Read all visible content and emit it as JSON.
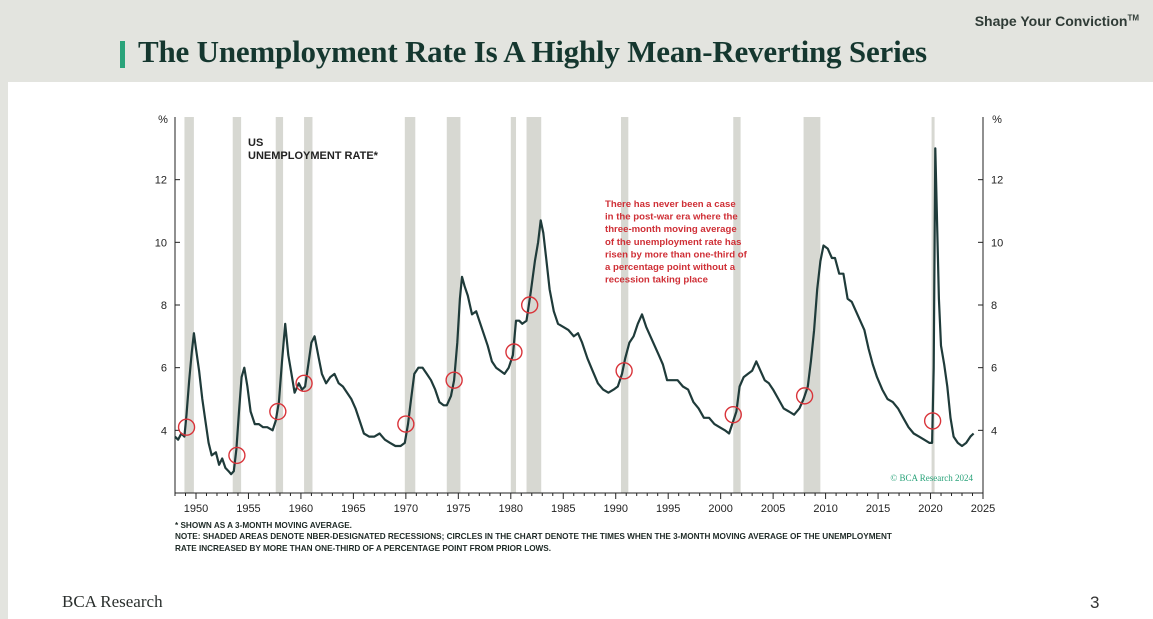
{
  "header": {
    "tagline": "Shape Your Conviction",
    "tagline_mark": "TM",
    "title": "The Unemployment Rate Is A Highly Mean-Reverting Series",
    "accent_color": "#2aa37a"
  },
  "chart_data": {
    "type": "line",
    "title": "US UNEMPLOYMENT RATE*",
    "title_lines": [
      "US",
      "UNEMPLOYMENT RATE*"
    ],
    "ylabel": "%",
    "y_ticks": [
      4,
      6,
      8,
      10,
      12
    ],
    "ylim": [
      2.0,
      14.0
    ],
    "xlim": [
      1948.0,
      2025.0
    ],
    "x_ticks": [
      1950,
      1955,
      1960,
      1965,
      1970,
      1975,
      1980,
      1985,
      1990,
      1995,
      2000,
      2005,
      2010,
      2015,
      2020,
      2025
    ],
    "grid": false,
    "line_color": "#1f3b3a",
    "recession_color": "#d7d8d2",
    "circle_color": "#d9343a",
    "series": [
      {
        "values": [
          [
            1948.0,
            3.8
          ],
          [
            1948.3,
            3.7
          ],
          [
            1948.6,
            3.9
          ],
          [
            1948.9,
            3.8
          ],
          [
            1949.1,
            4.5
          ],
          [
            1949.35,
            5.6
          ],
          [
            1949.6,
            6.5
          ],
          [
            1949.8,
            7.1
          ],
          [
            1950.0,
            6.6
          ],
          [
            1950.3,
            5.9
          ],
          [
            1950.6,
            5.0
          ],
          [
            1950.9,
            4.3
          ],
          [
            1951.2,
            3.6
          ],
          [
            1951.5,
            3.2
          ],
          [
            1951.9,
            3.3
          ],
          [
            1952.2,
            2.9
          ],
          [
            1952.5,
            3.1
          ],
          [
            1952.8,
            2.8
          ],
          [
            1953.1,
            2.7
          ],
          [
            1953.35,
            2.6
          ],
          [
            1953.6,
            2.7
          ],
          [
            1953.85,
            3.4
          ],
          [
            1954.1,
            4.6
          ],
          [
            1954.35,
            5.7
          ],
          [
            1954.6,
            6.0
          ],
          [
            1954.9,
            5.4
          ],
          [
            1955.2,
            4.6
          ],
          [
            1955.6,
            4.2
          ],
          [
            1956.0,
            4.2
          ],
          [
            1956.4,
            4.1
          ],
          [
            1956.8,
            4.1
          ],
          [
            1957.3,
            4.0
          ],
          [
            1957.6,
            4.3
          ],
          [
            1957.9,
            4.9
          ],
          [
            1958.2,
            6.2
          ],
          [
            1958.5,
            7.4
          ],
          [
            1958.8,
            6.4
          ],
          [
            1959.1,
            5.8
          ],
          [
            1959.4,
            5.2
          ],
          [
            1959.8,
            5.5
          ],
          [
            1960.1,
            5.3
          ],
          [
            1960.4,
            5.4
          ],
          [
            1960.7,
            6.1
          ],
          [
            1961.0,
            6.8
          ],
          [
            1961.3,
            7.0
          ],
          [
            1961.7,
            6.3
          ],
          [
            1962.0,
            5.8
          ],
          [
            1962.4,
            5.5
          ],
          [
            1962.8,
            5.7
          ],
          [
            1963.2,
            5.8
          ],
          [
            1963.6,
            5.5
          ],
          [
            1964.0,
            5.4
          ],
          [
            1964.4,
            5.2
          ],
          [
            1964.8,
            5.0
          ],
          [
            1965.2,
            4.7
          ],
          [
            1965.6,
            4.3
          ],
          [
            1966.0,
            3.9
          ],
          [
            1966.5,
            3.8
          ],
          [
            1967.0,
            3.8
          ],
          [
            1967.5,
            3.9
          ],
          [
            1968.0,
            3.7
          ],
          [
            1968.5,
            3.6
          ],
          [
            1969.0,
            3.5
          ],
          [
            1969.5,
            3.5
          ],
          [
            1969.9,
            3.6
          ],
          [
            1970.2,
            4.2
          ],
          [
            1970.5,
            5.0
          ],
          [
            1970.8,
            5.8
          ],
          [
            1971.2,
            6.0
          ],
          [
            1971.6,
            6.0
          ],
          [
            1972.0,
            5.8
          ],
          [
            1972.4,
            5.6
          ],
          [
            1972.8,
            5.3
          ],
          [
            1973.2,
            4.9
          ],
          [
            1973.6,
            4.8
          ],
          [
            1973.9,
            4.8
          ],
          [
            1974.3,
            5.1
          ],
          [
            1974.6,
            5.6
          ],
          [
            1974.9,
            6.8
          ],
          [
            1975.15,
            8.2
          ],
          [
            1975.35,
            8.9
          ],
          [
            1975.6,
            8.6
          ],
          [
            1975.9,
            8.3
          ],
          [
            1976.3,
            7.7
          ],
          [
            1976.7,
            7.8
          ],
          [
            1977.0,
            7.5
          ],
          [
            1977.4,
            7.1
          ],
          [
            1977.8,
            6.7
          ],
          [
            1978.2,
            6.2
          ],
          [
            1978.6,
            6.0
          ],
          [
            1979.0,
            5.9
          ],
          [
            1979.4,
            5.8
          ],
          [
            1979.8,
            6.0
          ],
          [
            1980.2,
            6.4
          ],
          [
            1980.5,
            7.5
          ],
          [
            1980.8,
            7.5
          ],
          [
            1981.1,
            7.4
          ],
          [
            1981.5,
            7.5
          ],
          [
            1981.9,
            8.4
          ],
          [
            1982.3,
            9.4
          ],
          [
            1982.6,
            10.0
          ],
          [
            1982.85,
            10.7
          ],
          [
            1983.1,
            10.3
          ],
          [
            1983.4,
            9.4
          ],
          [
            1983.7,
            8.5
          ],
          [
            1984.1,
            7.8
          ],
          [
            1984.5,
            7.4
          ],
          [
            1985.0,
            7.3
          ],
          [
            1985.5,
            7.2
          ],
          [
            1986.0,
            7.0
          ],
          [
            1986.4,
            7.1
          ],
          [
            1986.8,
            6.8
          ],
          [
            1987.3,
            6.3
          ],
          [
            1987.8,
            5.9
          ],
          [
            1988.3,
            5.5
          ],
          [
            1988.8,
            5.3
          ],
          [
            1989.3,
            5.2
          ],
          [
            1989.8,
            5.3
          ],
          [
            1990.2,
            5.4
          ],
          [
            1990.6,
            5.8
          ],
          [
            1990.9,
            6.3
          ],
          [
            1991.3,
            6.8
          ],
          [
            1991.7,
            7.0
          ],
          [
            1992.1,
            7.4
          ],
          [
            1992.5,
            7.7
          ],
          [
            1992.9,
            7.3
          ],
          [
            1993.3,
            7.0
          ],
          [
            1993.7,
            6.7
          ],
          [
            1994.1,
            6.4
          ],
          [
            1994.5,
            6.1
          ],
          [
            1994.9,
            5.6
          ],
          [
            1995.4,
            5.6
          ],
          [
            1995.9,
            5.6
          ],
          [
            1996.4,
            5.4
          ],
          [
            1996.9,
            5.3
          ],
          [
            1997.4,
            4.9
          ],
          [
            1997.9,
            4.7
          ],
          [
            1998.4,
            4.4
          ],
          [
            1998.9,
            4.4
          ],
          [
            1999.4,
            4.2
          ],
          [
            1999.9,
            4.1
          ],
          [
            2000.4,
            4.0
          ],
          [
            2000.8,
            3.9
          ],
          [
            2001.2,
            4.3
          ],
          [
            2001.5,
            4.6
          ],
          [
            2001.8,
            5.4
          ],
          [
            2002.2,
            5.7
          ],
          [
            2002.6,
            5.8
          ],
          [
            2003.0,
            5.9
          ],
          [
            2003.4,
            6.2
          ],
          [
            2003.8,
            5.9
          ],
          [
            2004.2,
            5.6
          ],
          [
            2004.6,
            5.5
          ],
          [
            2005.0,
            5.3
          ],
          [
            2005.5,
            5.0
          ],
          [
            2006.0,
            4.7
          ],
          [
            2006.5,
            4.6
          ],
          [
            2007.0,
            4.5
          ],
          [
            2007.5,
            4.7
          ],
          [
            2007.9,
            5.0
          ],
          [
            2008.3,
            5.4
          ],
          [
            2008.6,
            6.2
          ],
          [
            2008.9,
            7.2
          ],
          [
            2009.2,
            8.5
          ],
          [
            2009.5,
            9.4
          ],
          [
            2009.8,
            9.9
          ],
          [
            2010.2,
            9.8
          ],
          [
            2010.6,
            9.5
          ],
          [
            2010.9,
            9.5
          ],
          [
            2011.3,
            9.0
          ],
          [
            2011.7,
            9.0
          ],
          [
            2012.1,
            8.2
          ],
          [
            2012.5,
            8.1
          ],
          [
            2012.9,
            7.8
          ],
          [
            2013.3,
            7.5
          ],
          [
            2013.7,
            7.2
          ],
          [
            2014.1,
            6.6
          ],
          [
            2014.5,
            6.1
          ],
          [
            2014.9,
            5.7
          ],
          [
            2015.4,
            5.3
          ],
          [
            2015.9,
            5.0
          ],
          [
            2016.4,
            4.9
          ],
          [
            2016.9,
            4.7
          ],
          [
            2017.4,
            4.4
          ],
          [
            2017.9,
            4.1
          ],
          [
            2018.4,
            3.9
          ],
          [
            2018.9,
            3.8
          ],
          [
            2019.4,
            3.7
          ],
          [
            2019.9,
            3.6
          ],
          [
            2020.15,
            3.6
          ],
          [
            2020.3,
            6.0
          ],
          [
            2020.45,
            13.0
          ],
          [
            2020.6,
            11.0
          ],
          [
            2020.8,
            8.2
          ],
          [
            2021.0,
            6.7
          ],
          [
            2021.3,
            6.1
          ],
          [
            2021.6,
            5.4
          ],
          [
            2021.9,
            4.4
          ],
          [
            2022.2,
            3.8
          ],
          [
            2022.6,
            3.6
          ],
          [
            2023.0,
            3.5
          ],
          [
            2023.4,
            3.6
          ],
          [
            2023.8,
            3.8
          ],
          [
            2024.1,
            3.9
          ]
        ]
      }
    ],
    "recessions": [
      [
        1948.9,
        1949.8
      ],
      [
        1953.5,
        1954.3
      ],
      [
        1957.6,
        1958.3
      ],
      [
        1960.3,
        1961.1
      ],
      [
        1969.9,
        1970.9
      ],
      [
        1973.9,
        1975.2
      ],
      [
        1980.0,
        1980.5
      ],
      [
        1981.5,
        1982.9
      ],
      [
        1990.5,
        1991.2
      ],
      [
        2001.2,
        2001.9
      ],
      [
        2007.9,
        2009.5
      ],
      [
        2020.1,
        2020.35
      ]
    ],
    "circles": [
      [
        1949.1,
        4.1
      ],
      [
        1953.9,
        3.2
      ],
      [
        1957.8,
        4.6
      ],
      [
        1960.3,
        5.5
      ],
      [
        1970.0,
        4.2
      ],
      [
        1974.6,
        5.6
      ],
      [
        1980.3,
        6.5
      ],
      [
        1981.8,
        8.0
      ],
      [
        1990.8,
        5.9
      ],
      [
        2001.2,
        4.5
      ],
      [
        2008.0,
        5.1
      ],
      [
        2020.2,
        4.3
      ]
    ],
    "annotation_lines": [
      "There has never been a case",
      "in the post-war era where the",
      "three-month moving average",
      "of the unemployment rate has",
      "risen by more than one-third of",
      "a percentage point without a",
      "recession taking place"
    ],
    "copyright": "© BCA Research 2024"
  },
  "footnotes": [
    "* SHOWN AS A 3-MONTH MOVING AVERAGE.",
    "NOTE: SHADED AREAS DENOTE NBER-DESIGNATED RECESSIONS; CIRCLES IN THE CHART DENOTE THE TIMES WHEN THE 3-MONTH MOVING AVERAGE OF THE UNEMPLOYMENT",
    "RATE INCREASED BY MORE THAN ONE-THIRD OF A PERCENTAGE POINT FROM PRIOR LOWS."
  ],
  "footer": {
    "logo": "BCA Research",
    "page_number": "3"
  }
}
